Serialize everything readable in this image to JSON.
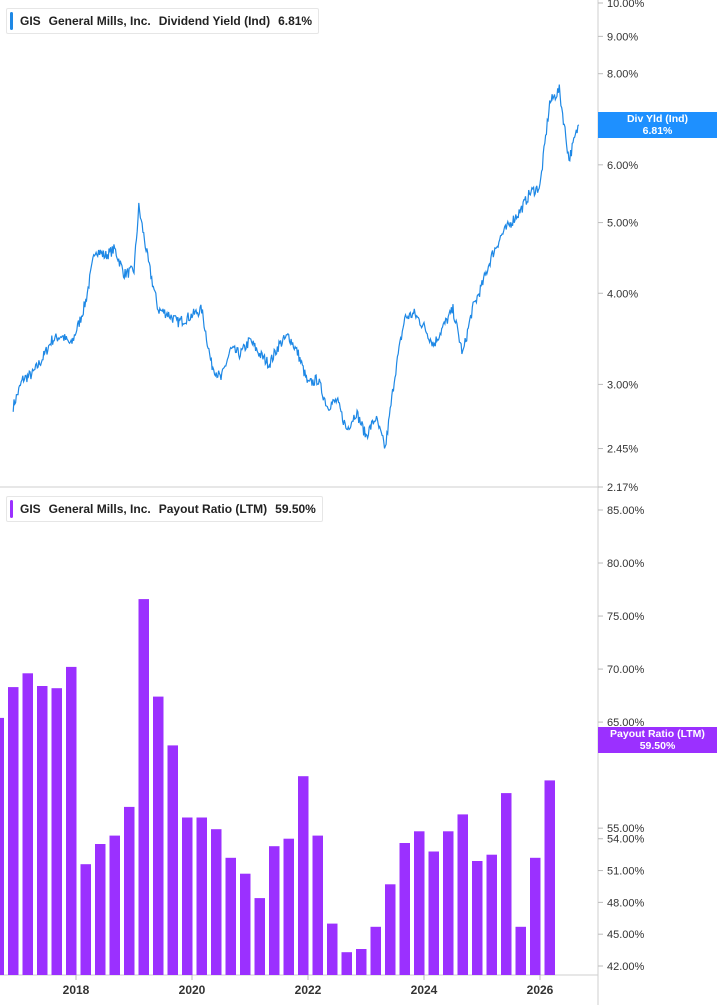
{
  "panels": {
    "top": {
      "ticker": "GIS",
      "company": "General Mills, Inc.",
      "metric": "Dividend Yield (Ind)",
      "value": "6.81%",
      "badge_line1": "Div Yld (Ind)",
      "badge_line2": "6.81%",
      "color": "#1e88e5"
    },
    "bottom": {
      "ticker": "GIS",
      "company": "General Mills, Inc.",
      "metric": "Payout Ratio (LTM)",
      "value": "59.50%",
      "badge_line1": "Payout Ratio (LTM)",
      "badge_line2": "59.50%",
      "color": "#9b30ff"
    }
  },
  "chart_data": [
    {
      "type": "line",
      "scale": "log",
      "y_ticks": [
        "10.00%",
        "9.00%",
        "8.00%",
        "7.00%",
        "6.00%",
        "5.00%",
        "4.00%",
        "3.00%",
        "2.45%",
        "2.17%"
      ],
      "y_tick_values": [
        10,
        9,
        8,
        7,
        6,
        5,
        4,
        3,
        2.45,
        2.17
      ],
      "ylim": [
        2.17,
        10
      ],
      "x_ticks": [
        "2018",
        "2020",
        "2022",
        "2024",
        "2026"
      ],
      "xlim": [
        "2016-12-01",
        "2026-10-01"
      ],
      "series": [
        {
          "x": [
            "2016-12",
            "2017-02",
            "2017-04",
            "2017-06",
            "2017-08",
            "2017-10",
            "2017-12",
            "2018-02",
            "2018-03",
            "2018-05",
            "2018-07",
            "2018-09",
            "2018-11",
            "2019-01",
            "2019-02",
            "2019-04",
            "2019-06",
            "2019-08",
            "2019-10",
            "2019-12",
            "2020-03",
            "2020-05",
            "2020-07",
            "2020-09",
            "2020-11",
            "2021-01",
            "2021-03",
            "2021-05",
            "2021-07",
            "2021-09",
            "2021-11",
            "2022-01",
            "2022-03",
            "2022-05",
            "2022-07",
            "2022-09",
            "2022-11",
            "2023-01",
            "2023-03",
            "2023-05",
            "2023-07",
            "2023-09",
            "2023-11",
            "2024-01",
            "2024-03",
            "2024-05",
            "2024-07",
            "2024-09",
            "2024-11",
            "2025-01",
            "2025-03",
            "2025-05",
            "2025-07",
            "2025-09",
            "2025-11",
            "2026-01",
            "2026-03",
            "2026-05",
            "2026-07",
            "2026-09"
          ],
          "values": [
            2.8,
            3.05,
            3.1,
            3.25,
            3.45,
            3.5,
            3.4,
            3.7,
            3.9,
            4.6,
            4.5,
            4.6,
            4.25,
            4.3,
            5.25,
            4.4,
            3.8,
            3.75,
            3.65,
            3.7,
            3.8,
            3.2,
            3.05,
            3.35,
            3.3,
            3.45,
            3.3,
            3.2,
            3.4,
            3.5,
            3.3,
            3.0,
            3.05,
            2.8,
            2.85,
            2.6,
            2.75,
            2.55,
            2.7,
            2.45,
            3.1,
            3.7,
            3.75,
            3.6,
            3.4,
            3.6,
            3.8,
            3.3,
            3.8,
            4.1,
            4.5,
            4.8,
            5.0,
            5.2,
            5.5,
            5.6,
            7.3,
            7.6,
            6.1,
            6.81
          ]
        }
      ]
    },
    {
      "type": "bar",
      "y_ticks": [
        "85.00%",
        "80.00%",
        "75.00%",
        "70.00%",
        "65.00%",
        "55.00%",
        "54.00%",
        "51.00%",
        "48.00%",
        "45.00%",
        "42.00%"
      ],
      "y_tick_values": [
        85,
        80,
        75,
        70,
        65,
        55,
        54,
        51,
        48,
        45,
        42
      ],
      "ylim": [
        41.5,
        86
      ],
      "x_ticks": [
        "2018",
        "2020",
        "2022",
        "2024",
        "2026"
      ],
      "series": [
        {
          "values": [
            65.4,
            68.3,
            69.6,
            68.4,
            68.2,
            70.2,
            51.6,
            53.5,
            54.3,
            57.0,
            76.6,
            67.4,
            62.8,
            56.0,
            56.0,
            54.9,
            52.2,
            50.7,
            48.4,
            53.3,
            54.0,
            59.9,
            54.3,
            46.0,
            43.3,
            43.6,
            45.7,
            49.7,
            53.6,
            54.7,
            52.8,
            54.7,
            56.3,
            51.9,
            52.5,
            58.3,
            45.7,
            52.2,
            59.5
          ]
        }
      ]
    }
  ]
}
